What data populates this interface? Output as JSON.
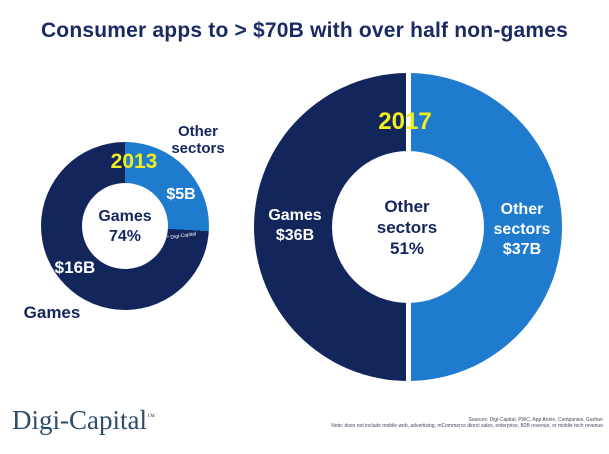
{
  "title": "Consumer apps to > $70B with over half non-games",
  "colors": {
    "navy": "#13265c",
    "light_blue": "#1e7bcd",
    "year_yellow": "#f0ee1e",
    "title_navy": "#1b2a63",
    "logo_blue": "#2e4d68",
    "background": "#ffffff"
  },
  "chart_data": [
    {
      "type": "pie",
      "donut": true,
      "title": "2013",
      "divider_gap": false,
      "slices": [
        {
          "name": "Games",
          "value_billions": 16,
          "value_label": "$16B",
          "percent": 74,
          "color": "#13265c"
        },
        {
          "name": "Other sectors",
          "value_billions": 5,
          "value_label": "$5B",
          "percent": 26,
          "color": "#1e7bcd"
        }
      ],
      "center_lines": [
        "Games",
        "74%"
      ],
      "watermark": "* Digi-Capital"
    },
    {
      "type": "pie",
      "donut": true,
      "title": "2017",
      "divider_gap": true,
      "slices": [
        {
          "name": "Games",
          "value_billions": 36,
          "value_label": "$36B",
          "percent": 49,
          "color": "#13265c"
        },
        {
          "name": "Other sectors",
          "value_billions": 37,
          "value_label": "$37B",
          "percent": 51,
          "color": "#1e7bcd"
        }
      ],
      "center_lines": [
        "Other sectors",
        "51%"
      ]
    }
  ],
  "footer": {
    "logo": "Digi-Capital",
    "logo_tm": "™",
    "sources": "Sources: Digi-Capital, PWC, App Annie, Companies, Gartner",
    "note": "Note: does not include mobile web, advertising, mCommerce direct sales, enterprise, B2B revenue, or mobile tech revenue"
  }
}
